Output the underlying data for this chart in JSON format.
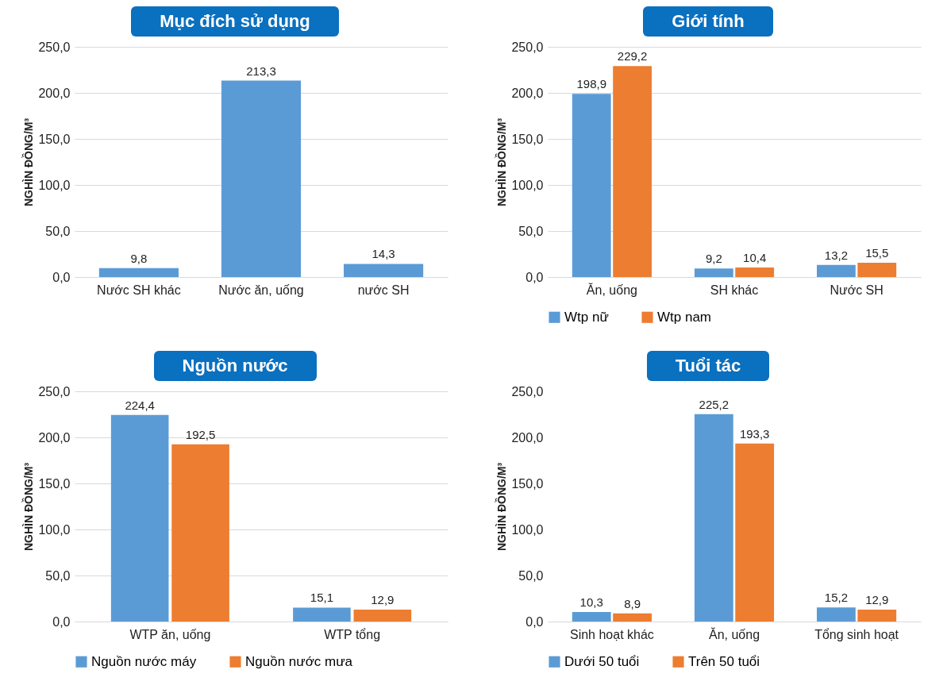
{
  "chart_data": [
    {
      "type": "bar",
      "title": "Mục đích sử dụng",
      "ylabel": "NGHÌN ĐỒNG/M³",
      "categories": [
        "Nước SH khác",
        "Nước ăn, uống",
        "nước SH"
      ],
      "values": [
        9.8,
        213.3,
        14.3
      ],
      "value_labels": [
        "9,8",
        "213,3",
        "14,3"
      ],
      "color": "#5b9bd5",
      "ylim": [
        0,
        250
      ],
      "yticks": [
        {
          "value": 0,
          "label": "0,0"
        },
        {
          "value": 50,
          "label": "50,0"
        },
        {
          "value": 100,
          "label": "100,0"
        },
        {
          "value": 150,
          "label": "150,0"
        },
        {
          "value": 200,
          "label": "200,0"
        },
        {
          "value": 250,
          "label": "250,0"
        }
      ],
      "grid": "y"
    },
    {
      "type": "bar",
      "title": "Giới tính",
      "ylabel": "NGHÌN ĐỒNG/M³",
      "categories": [
        "Ăn, uống",
        "SH khác",
        "Nước SH"
      ],
      "series": [
        {
          "name": "Wtp nữ",
          "color": "#5b9bd5",
          "values": [
            198.9,
            9.2,
            13.2
          ],
          "value_labels": [
            "198,9",
            "9,2",
            "13,2"
          ]
        },
        {
          "name": "Wtp nam",
          "color": "#ed7d31",
          "values": [
            229.2,
            10.4,
            15.5
          ],
          "value_labels": [
            "229,2",
            "10,4",
            "15,5"
          ]
        }
      ],
      "ylim": [
        0,
        250
      ],
      "yticks": [
        {
          "value": 0,
          "label": "0,0"
        },
        {
          "value": 50,
          "label": "50,0"
        },
        {
          "value": 100,
          "label": "100,0"
        },
        {
          "value": 150,
          "label": "150,0"
        },
        {
          "value": 200,
          "label": "200,0"
        },
        {
          "value": 250,
          "label": "250,0"
        }
      ],
      "grid": "y",
      "legend": "bottom"
    },
    {
      "type": "bar",
      "title": "Nguồn nước",
      "ylabel": "NGHÌN ĐỒNG/M³",
      "categories": [
        "WTP ăn, uống",
        "WTP tổng"
      ],
      "series": [
        {
          "name": "Nguồn nước máy",
          "color": "#5b9bd5",
          "values": [
            224.4,
            15.1
          ],
          "value_labels": [
            "224,4",
            "15,1"
          ]
        },
        {
          "name": "Nguồn nước mưa",
          "color": "#ed7d31",
          "values": [
            192.5,
            12.9
          ],
          "value_labels": [
            "192,5",
            "12,9"
          ]
        }
      ],
      "ylim": [
        0,
        250
      ],
      "yticks": [
        {
          "value": 0,
          "label": "0,0"
        },
        {
          "value": 50,
          "label": "50,0"
        },
        {
          "value": 100,
          "label": "100,0"
        },
        {
          "value": 150,
          "label": "150,0"
        },
        {
          "value": 200,
          "label": "200,0"
        },
        {
          "value": 250,
          "label": "250,0"
        }
      ],
      "grid": "y",
      "legend": "bottom"
    },
    {
      "type": "bar",
      "title": "Tuổi tác",
      "ylabel": "NGHÌN ĐỒNG/M³",
      "categories": [
        "Sinh hoạt khác",
        "Ăn, uống",
        "Tổng sinh hoạt"
      ],
      "series": [
        {
          "name": "Dưới 50 tuổi",
          "color": "#5b9bd5",
          "values": [
            10.3,
            225.2,
            15.2
          ],
          "value_labels": [
            "10,3",
            "225,2",
            "15,2"
          ]
        },
        {
          "name": "Trên 50 tuổi",
          "color": "#ed7d31",
          "values": [
            8.9,
            193.3,
            12.9
          ],
          "value_labels": [
            "8,9",
            "193,3",
            "12,9"
          ]
        }
      ],
      "ylim": [
        0,
        250
      ],
      "yticks": [
        {
          "value": 0,
          "label": "0,0"
        },
        {
          "value": 50,
          "label": "50,0"
        },
        {
          "value": 100,
          "label": "100,0"
        },
        {
          "value": 150,
          "label": "150,0"
        },
        {
          "value": 200,
          "label": "200,0"
        },
        {
          "value": 250,
          "label": "250,0"
        }
      ],
      "legend": "bottom"
    }
  ]
}
